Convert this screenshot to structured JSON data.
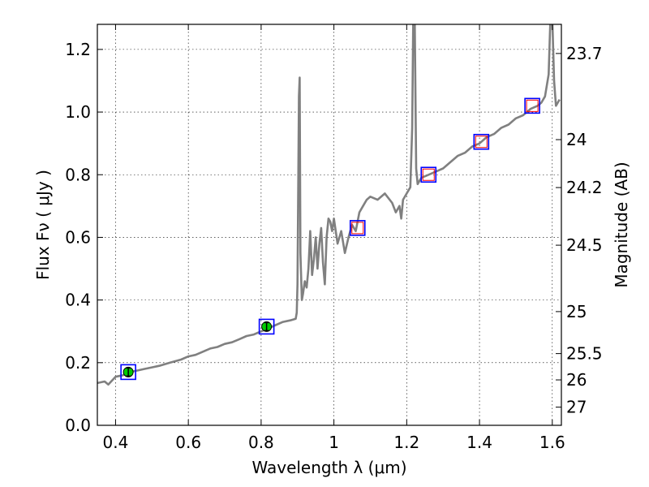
{
  "chart_data": {
    "type": "line",
    "xlabel": "Wavelength  λ (μm)",
    "ylabel_left": "Flux  Fν  ( μJy )",
    "ylabel_right": "Magnitude (AB)",
    "xlim": [
      0.35,
      1.625
    ],
    "ylim": [
      0.0,
      1.28
    ],
    "grid": true,
    "x_ticks": [
      0.4,
      0.6,
      0.8,
      1.0,
      1.2,
      1.4,
      1.6
    ],
    "x_tick_labels": [
      "0.4",
      "0.6",
      "0.8",
      "1",
      "1.2",
      "1.4",
      "1.6"
    ],
    "y_ticks": [
      0.0,
      0.2,
      0.4,
      0.6,
      0.8,
      1.0,
      1.2
    ],
    "y_tick_labels": [
      "0.0",
      "0.2",
      "0.4",
      "0.6",
      "0.8",
      "1.0",
      "1.2"
    ],
    "right_ticks": [
      {
        "label": "23.7",
        "flux": 1.187
      },
      {
        "label": "24",
        "flux": 0.912
      },
      {
        "label": "24.2",
        "flux": 0.759
      },
      {
        "label": "24.5",
        "flux": 0.575
      },
      {
        "label": "25",
        "flux": 0.363
      },
      {
        "label": "25.5",
        "flux": 0.229
      },
      {
        "label": "26",
        "flux": 0.145
      },
      {
        "label": "27",
        "flux": 0.058
      }
    ],
    "model_spectrum": {
      "color": "#808080",
      "x": [
        0.35,
        0.37,
        0.38,
        0.4,
        0.42,
        0.44,
        0.46,
        0.48,
        0.5,
        0.52,
        0.55,
        0.58,
        0.6,
        0.62,
        0.64,
        0.66,
        0.68,
        0.7,
        0.72,
        0.74,
        0.76,
        0.78,
        0.8,
        0.82,
        0.84,
        0.86,
        0.88,
        0.895,
        0.898,
        0.9,
        0.902,
        0.904,
        0.906,
        0.908,
        0.912,
        0.915,
        0.92,
        0.925,
        0.93,
        0.935,
        0.94,
        0.945,
        0.95,
        0.955,
        0.96,
        0.965,
        0.97,
        0.975,
        0.98,
        0.985,
        0.99,
        0.995,
        1.0,
        1.01,
        1.02,
        1.03,
        1.04,
        1.05,
        1.06,
        1.07,
        1.08,
        1.09,
        1.1,
        1.12,
        1.14,
        1.16,
        1.17,
        1.18,
        1.185,
        1.19,
        1.2,
        1.21,
        1.215,
        1.218,
        1.222,
        1.226,
        1.23,
        1.24,
        1.26,
        1.28,
        1.3,
        1.32,
        1.34,
        1.36,
        1.38,
        1.4,
        1.42,
        1.44,
        1.46,
        1.48,
        1.5,
        1.52,
        1.54,
        1.56,
        1.57,
        1.58,
        1.59,
        1.595,
        1.6,
        1.605,
        1.61,
        1.62
      ],
      "y": [
        0.135,
        0.14,
        0.13,
        0.155,
        0.16,
        0.17,
        0.175,
        0.18,
        0.185,
        0.19,
        0.2,
        0.21,
        0.22,
        0.225,
        0.235,
        0.245,
        0.25,
        0.26,
        0.265,
        0.275,
        0.285,
        0.29,
        0.3,
        0.31,
        0.32,
        0.33,
        0.335,
        0.34,
        0.36,
        0.45,
        0.75,
        1.05,
        1.11,
        0.55,
        0.4,
        0.42,
        0.46,
        0.44,
        0.5,
        0.62,
        0.48,
        0.53,
        0.6,
        0.5,
        0.58,
        0.63,
        0.52,
        0.45,
        0.6,
        0.66,
        0.65,
        0.62,
        0.66,
        0.58,
        0.62,
        0.55,
        0.6,
        0.64,
        0.62,
        0.68,
        0.7,
        0.72,
        0.73,
        0.72,
        0.74,
        0.71,
        0.68,
        0.7,
        0.66,
        0.72,
        0.74,
        0.76,
        0.95,
        1.3,
        1.3,
        0.82,
        0.77,
        0.79,
        0.8,
        0.81,
        0.82,
        0.84,
        0.86,
        0.87,
        0.89,
        0.9,
        0.92,
        0.93,
        0.95,
        0.96,
        0.98,
        0.99,
        1.01,
        1.02,
        1.03,
        1.05,
        1.12,
        1.3,
        1.3,
        1.1,
        1.02,
        1.04
      ]
    },
    "photometry_boxes": [
      {
        "x": 0.435,
        "y": 0.17,
        "model_marker": "green-circle-errorbar"
      },
      {
        "x": 0.815,
        "y": 0.315,
        "model_marker": "green-circle-errorbar"
      },
      {
        "x": 1.065,
        "y": 0.63,
        "model_marker": "red-square"
      },
      {
        "x": 1.26,
        "y": 0.8,
        "model_marker": "red-square"
      },
      {
        "x": 1.405,
        "y": 0.905,
        "model_marker": "red-square"
      },
      {
        "x": 1.545,
        "y": 1.02,
        "model_marker": "red-square"
      }
    ],
    "colors": {
      "box": "#0000ff",
      "model_marker": "#ff0000",
      "observed_marker": "#00cc00",
      "spectrum": "#808080"
    }
  }
}
